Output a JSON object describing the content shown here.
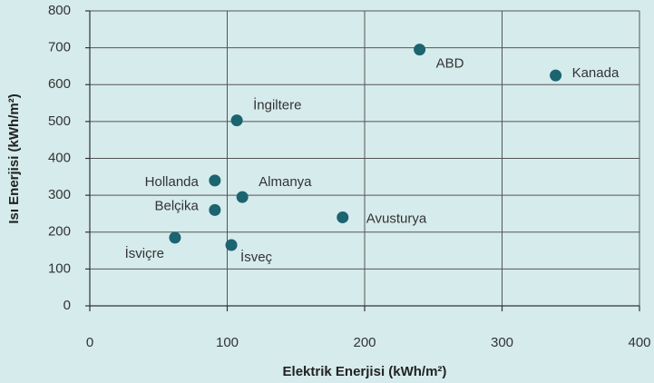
{
  "chart_data": {
    "type": "scatter",
    "x_label": "Elektrik Enerjisi (kWh/m²)",
    "y_label": "Isı Enerjisi (kWh/m²)",
    "point_labels": [
      "ABD",
      "Kanada",
      "İngiltere",
      "Hollanda",
      "Almanya",
      "Belçika",
      "Avusturya",
      "İsviçre",
      "İsveç"
    ],
    "x": [
      240,
      339,
      107,
      91,
      111,
      91,
      184,
      62,
      103
    ],
    "values": [
      695,
      625,
      503,
      340,
      295,
      260,
      240,
      185,
      165
    ],
    "color": "#1b6470",
    "xlim": [
      0,
      400
    ],
    "xticks": [
      0,
      100,
      200,
      300,
      400
    ],
    "ylim": [
      0,
      800
    ],
    "yticks": [
      0,
      100,
      200,
      300,
      400,
      500,
      600,
      700,
      800
    ],
    "grid": true
  }
}
